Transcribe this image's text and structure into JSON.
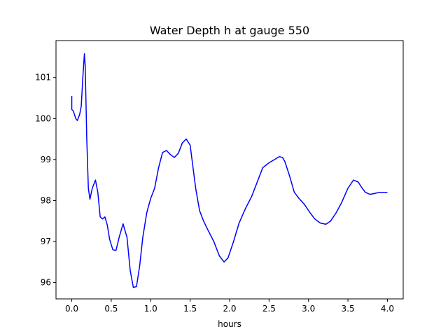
{
  "chart_data": {
    "type": "line",
    "title": "Water Depth h at gauge 550",
    "xlabel": "hours",
    "ylabel": "",
    "xlim": [
      -0.2,
      4.2
    ],
    "ylim": [
      95.6,
      101.9
    ],
    "xticks": [
      0.0,
      0.5,
      1.0,
      1.5,
      2.0,
      2.5,
      3.0,
      3.5,
      4.0
    ],
    "xtick_labels": [
      "0.0",
      "0.5",
      "1.0",
      "1.5",
      "2.0",
      "2.5",
      "3.0",
      "3.5",
      "4.0"
    ],
    "yticks": [
      96,
      97,
      98,
      99,
      100,
      101
    ],
    "ytick_labels": [
      "96",
      "97",
      "98",
      "99",
      "100",
      "101"
    ],
    "grid": false,
    "series": [
      {
        "color": "#0000ff",
        "x": [
          0.0,
          0.0,
          0.02,
          0.05,
          0.07,
          0.1,
          0.12,
          0.14,
          0.16,
          0.17,
          0.19,
          0.21,
          0.23,
          0.26,
          0.3,
          0.33,
          0.36,
          0.39,
          0.42,
          0.45,
          0.48,
          0.52,
          0.56,
          0.6,
          0.65,
          0.7,
          0.74,
          0.78,
          0.82,
          0.86,
          0.9,
          0.95,
          1.0,
          1.05,
          1.1,
          1.15,
          1.2,
          1.25,
          1.3,
          1.35,
          1.4,
          1.45,
          1.5,
          1.53,
          1.57,
          1.62,
          1.67,
          1.72,
          1.8,
          1.87,
          1.93,
          1.98,
          2.05,
          2.12,
          2.2,
          2.28,
          2.36,
          2.42,
          2.5,
          2.57,
          2.63,
          2.67,
          2.7,
          2.76,
          2.82,
          2.88,
          2.95,
          3.02,
          3.08,
          3.15,
          3.22,
          3.28,
          3.35,
          3.42,
          3.5,
          3.57,
          3.63,
          3.68,
          3.72,
          3.78,
          3.83,
          3.88,
          3.93,
          4.0
        ],
        "y": [
          100.55,
          100.22,
          100.18,
          100.0,
          99.95,
          100.1,
          100.3,
          101.0,
          101.58,
          101.3,
          99.5,
          98.3,
          98.03,
          98.3,
          98.5,
          98.2,
          97.6,
          97.55,
          97.6,
          97.4,
          97.05,
          96.8,
          96.78,
          97.1,
          97.43,
          97.1,
          96.3,
          95.88,
          95.9,
          96.4,
          97.1,
          97.7,
          98.05,
          98.3,
          98.8,
          99.17,
          99.22,
          99.12,
          99.05,
          99.15,
          99.4,
          99.5,
          99.35,
          98.9,
          98.3,
          97.75,
          97.5,
          97.3,
          97.0,
          96.65,
          96.5,
          96.6,
          97.0,
          97.45,
          97.8,
          98.1,
          98.5,
          98.8,
          98.92,
          99.0,
          99.07,
          99.05,
          98.95,
          98.6,
          98.2,
          98.05,
          97.9,
          97.7,
          97.55,
          97.45,
          97.42,
          97.5,
          97.7,
          97.95,
          98.3,
          98.5,
          98.45,
          98.3,
          98.2,
          98.15,
          98.17,
          98.19,
          98.19,
          98.19
        ]
      }
    ]
  }
}
